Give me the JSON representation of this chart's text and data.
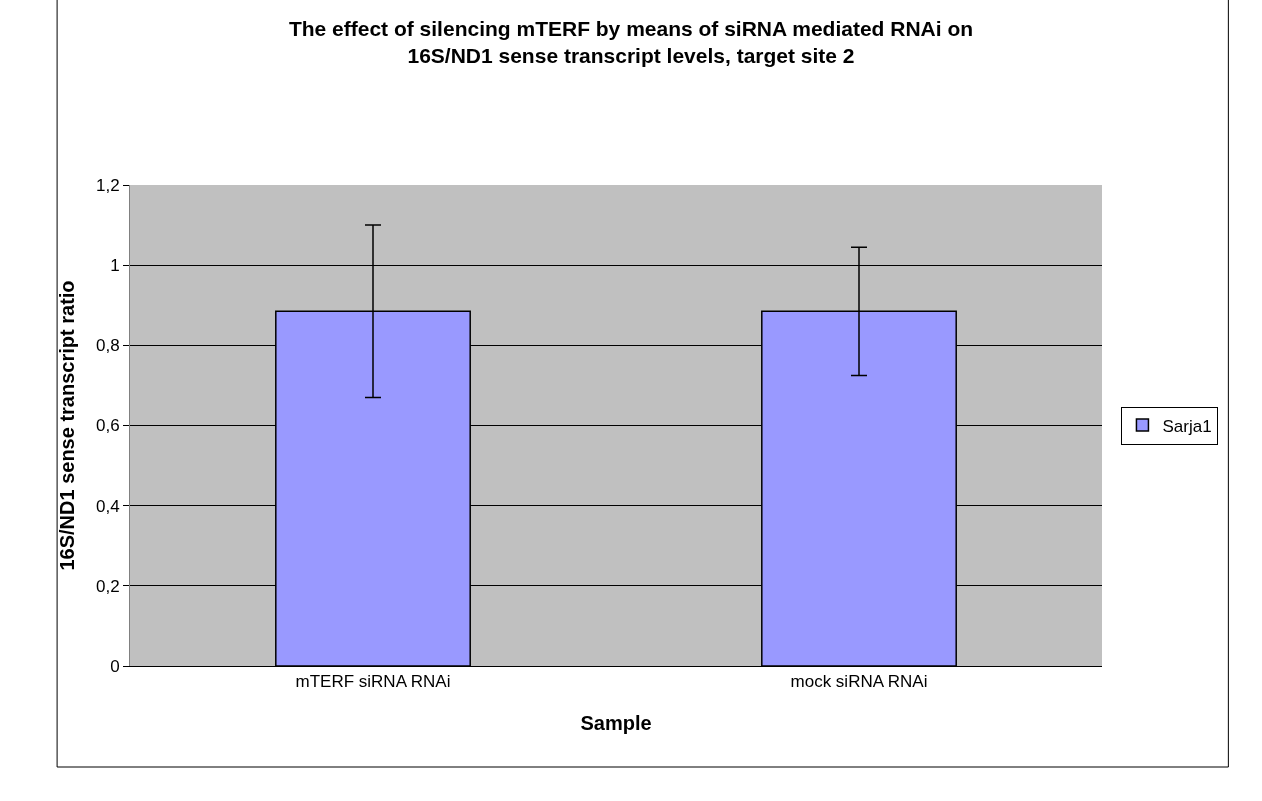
{
  "chart_data": {
    "type": "bar",
    "title": "The effect of silencing mTERF by means of siRNA mediated RNAi on\n16S/ND1 sense transcript levels, target site 2",
    "xlabel": "Sample",
    "ylabel": "16S/ND1 sense transcript ratio",
    "categories": [
      "mTERF siRNA RNAi",
      "mock siRNA RNAi"
    ],
    "series": [
      {
        "name": "Sarja1",
        "color": "#9999ff",
        "values": [
          0.885,
          0.885
        ],
        "errors": [
          0.215,
          0.16
        ]
      }
    ],
    "ylim": [
      0,
      1.2
    ],
    "yticks": [
      {
        "value": 0,
        "label": "0"
      },
      {
        "value": 0.2,
        "label": "0,2"
      },
      {
        "value": 0.4,
        "label": "0,4"
      },
      {
        "value": 0.6,
        "label": "0,6"
      },
      {
        "value": 0.8,
        "label": "0,8"
      },
      {
        "value": 1,
        "label": "1"
      },
      {
        "value": 1.2,
        "label": "1,2"
      }
    ],
    "grid": "y",
    "legend": "right"
  }
}
